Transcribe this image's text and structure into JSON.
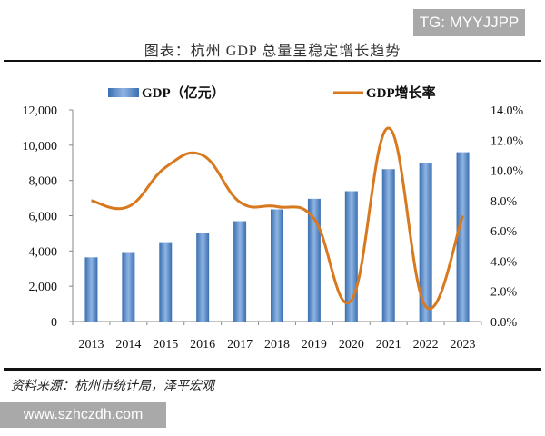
{
  "watermark_top": "TG: MYYJJPP",
  "chart_title": "图表：杭州 GDP 总量呈稳定增长趋势",
  "source": "资料来源：杭州市统计局，泽平宏观",
  "watermark_bottom": "www.szhczdh.com",
  "colors": {
    "bar": "#4f81bd",
    "line": "#d9791f"
  },
  "chart_data": {
    "type": "bar+line",
    "title": "图表：杭州 GDP 总量呈稳定增长趋势",
    "categories": [
      "2013",
      "2014",
      "2015",
      "2016",
      "2017",
      "2018",
      "2019",
      "2020",
      "2021",
      "2022",
      "2023"
    ],
    "series": [
      {
        "name": "GDP（亿元）",
        "type": "bar",
        "axis": "left",
        "values": [
          3640,
          3940,
          4500,
          5010,
          5690,
          6360,
          6960,
          7390,
          8640,
          9000,
          9600
        ]
      },
      {
        "name": "GDP增长率",
        "type": "line",
        "axis": "right",
        "smooth": true,
        "values": [
          8.0,
          7.6,
          10.2,
          11.0,
          7.9,
          7.6,
          6.8,
          1.4,
          12.8,
          1.0,
          7.0
        ]
      }
    ],
    "left_axis": {
      "range": [
        0,
        12000
      ],
      "ticks": [
        "0",
        "2,000",
        "4,000",
        "6,000",
        "8,000",
        "10,000",
        "12,000"
      ]
    },
    "right_axis": {
      "range": [
        0,
        14
      ],
      "ticks": [
        "0.0%",
        "2.0%",
        "4.0%",
        "6.0%",
        "8.0%",
        "10.0%",
        "12.0%",
        "14.0%"
      ]
    },
    "legend": "top",
    "grid": false
  }
}
